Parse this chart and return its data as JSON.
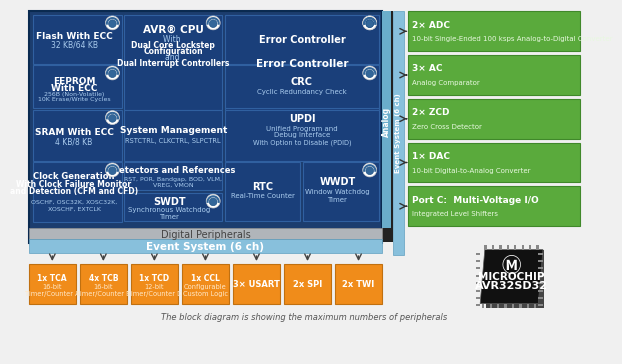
{
  "bg_color": "#f0f0f0",
  "dark_blue": "#1c3d6e",
  "mid_blue": "#1e4d8c",
  "cell_blue": "#1a3f7a",
  "outer_border": "#2a5a9a",
  "analog_bar_color": "#6aadcb",
  "event_bar_color": "#7bbad5",
  "green": "#5aaa3c",
  "orange": "#f08c1a",
  "gray_band": "#b0b5ba",
  "white": "#ffffff",
  "light_gray": "#d8dde2",
  "footer": "The block diagram is showing the maximum numbers of peripherals",
  "left_blocks": [
    {
      "title": "Flash With ECC",
      "subtitle": "32 KB/64 KB"
    },
    {
      "title": "EEPROM\nWith ECC",
      "subtitle": "256B (Non-Volatile)\n10K Erase/Write Cycles"
    },
    {
      "title": "SRAM With ECC",
      "subtitle": "4 KB/8 KB"
    },
    {
      "title": "Clock Generation\nWith Clock Failure Monitor\nand Detection (CFM and CFD)",
      "subtitle": "OSCHF, OSC32K, XOSC32K,\nXOSCHF, EXTCLK"
    }
  ],
  "mid_blocks": [
    {
      "title": "AVR® CPU",
      "subtitle_plain": "With ",
      "subtitle_bold1": "Dual Core Lockstep",
      "subtitle_mid": " Configuration\nand ",
      "subtitle_bold2": "Dual Interrupt Controllers",
      "rowspan": 2
    },
    {
      "title": "System Management",
      "subtitle": "RSTCTRL, CLKCTRL, SLPCTRL"
    },
    {
      "title": "Detectors and References",
      "subtitle": "RST, POR, Bandgap, BOD, VLM,\nVREG, VMON"
    },
    {
      "title": "SWDT",
      "subtitle": "Synchronous Watchdog\nTimer",
      "has_icon": true
    }
  ],
  "right_col1": [
    {
      "title": "Error Controller",
      "subtitle": "",
      "has_icon": true,
      "rowspan": 2
    },
    {
      "title": "CRC",
      "subtitle": "Cyclic Redundancy Check",
      "has_icon": true
    },
    {
      "title": "UPDI",
      "subtitle": "Unified Program and\nDebug Interface\nWith Option to Disable (PDID)"
    },
    {
      "title": "RTC",
      "subtitle": "Real-Time Counter"
    }
  ],
  "right_col2": [
    {
      "title": "WWDT",
      "subtitle": "Window Watchdog\nTimer",
      "has_icon": true
    }
  ],
  "analog_blocks": [
    {
      "title": "2× ADC",
      "subtitle": "10-bit Single-Ended 100 ksps Analog-to-Digital Converter"
    },
    {
      "title": "3× AC",
      "subtitle": "Analog Comparator"
    },
    {
      "title": "2× ZCD",
      "subtitle": "Zero Cross Detector"
    },
    {
      "title": "1× DAC",
      "subtitle": "10-bit Digital-to-Analog Converter"
    },
    {
      "title": "Port C:  Multi-Voltage I/O",
      "subtitle": "Integrated Level Shifters"
    }
  ],
  "bottom_blocks": [
    {
      "title": "1x TCA",
      "subtitle": "16-bit\nTimer/Counter A"
    },
    {
      "title": "4x TCB",
      "subtitle": "16-bit\nTimer/Counter B"
    },
    {
      "title": "1x TCD",
      "subtitle": "12-bit\nTimer/Counter D"
    },
    {
      "title": "1x CCL",
      "subtitle": "Configurable\nCustom Logic"
    },
    {
      "title": "3× USART",
      "subtitle": ""
    },
    {
      "title": "2x SPI",
      "subtitle": ""
    },
    {
      "title": "2x TWI",
      "subtitle": ""
    }
  ]
}
